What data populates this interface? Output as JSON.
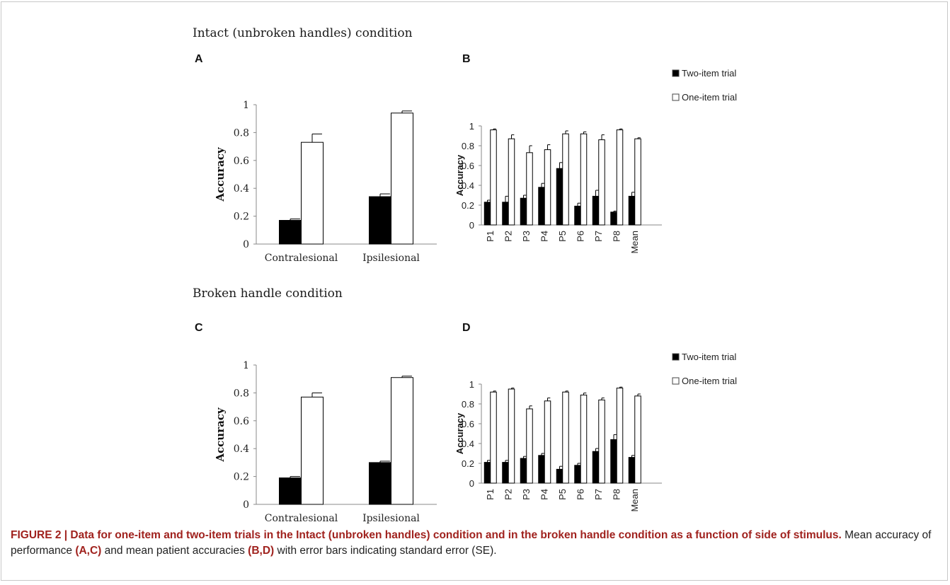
{
  "sections": [
    {
      "title": "Intact (unbroken handles) condition"
    },
    {
      "title": "Broken handle condition"
    }
  ],
  "panel_letters": {
    "A": "A",
    "B": "B",
    "C": "C",
    "D": "D"
  },
  "caption": {
    "lead": "FIGURE 2 | Data for one-item and two-item trials in the Intact (unbroken handles) condition and in the broken handle condition as a function of side of stimulus.",
    "t1": " Mean accuracy of performance ",
    "ref1": "(A,C)",
    "t2": " and mean patient accuracies ",
    "ref2": "(B,D)",
    "t3": " with error bars indicating standard error (SE)."
  },
  "colors": {
    "two_item": "#000000",
    "one_item": "#ffffff",
    "axis": "#888888"
  },
  "chart_data": [
    {
      "panel": "A",
      "type": "bar",
      "categories": [
        "Contralesional",
        "Ipsilesional"
      ],
      "ylabel": "Accuracy",
      "ylim": [
        0,
        1
      ],
      "yticks": [
        "0",
        "0.2",
        "0.4",
        "0.6",
        "0.8",
        "1"
      ],
      "series": [
        {
          "values": [
            0.17,
            0.34
          ],
          "errors": [
            0.01,
            0.02
          ],
          "fill": "#000000"
        },
        {
          "values": [
            0.73,
            0.94
          ],
          "errors": [
            0.06,
            0.015
          ],
          "fill": "#ffffff"
        }
      ]
    },
    {
      "panel": "B",
      "type": "bar",
      "categories": [
        "P1",
        "P2",
        "P3",
        "P4",
        "P5",
        "P6",
        "P7",
        "P8",
        "Mean"
      ],
      "ylabel": "Accuracy",
      "ylim": [
        0,
        1
      ],
      "yticks": [
        "0",
        "0.2",
        "0.4",
        "0.6",
        "0.8",
        "1"
      ],
      "legend": {
        "position": "right",
        "items": [
          "Two-item trial",
          "One-item trial"
        ]
      },
      "series": [
        {
          "name": "Two-item trial",
          "values": [
            0.23,
            0.23,
            0.27,
            0.38,
            0.57,
            0.19,
            0.29,
            0.13,
            0.29
          ],
          "errors": [
            0.02,
            0.06,
            0.03,
            0.04,
            0.06,
            0.03,
            0.06,
            0.01,
            0.04
          ],
          "fill": "#000000"
        },
        {
          "name": "One-item trial",
          "values": [
            0.96,
            0.87,
            0.73,
            0.76,
            0.92,
            0.92,
            0.86,
            0.96,
            0.87
          ],
          "errors": [
            0.01,
            0.04,
            0.07,
            0.05,
            0.03,
            0.02,
            0.05,
            0.01,
            0.01
          ],
          "fill": "#ffffff"
        }
      ]
    },
    {
      "panel": "C",
      "type": "bar",
      "categories": [
        "Contralesional",
        "Ipsilesional"
      ],
      "ylabel": "Accuracy",
      "ylim": [
        0,
        1
      ],
      "yticks": [
        "0",
        "0.2",
        "0.4",
        "0.6",
        "0.8",
        "1"
      ],
      "series": [
        {
          "values": [
            0.19,
            0.3
          ],
          "errors": [
            0.01,
            0.01
          ],
          "fill": "#000000"
        },
        {
          "values": [
            0.77,
            0.91
          ],
          "errors": [
            0.03,
            0.01
          ],
          "fill": "#ffffff"
        }
      ]
    },
    {
      "panel": "D",
      "type": "bar",
      "categories": [
        "P1",
        "P2",
        "P3",
        "P4",
        "P5",
        "P6",
        "P7",
        "P8",
        "Mean"
      ],
      "ylabel": "Accuracy",
      "ylim": [
        0,
        1
      ],
      "yticks": [
        "0",
        "0.2",
        "0.4",
        "0.6",
        "0.8",
        "1"
      ],
      "legend": {
        "position": "right",
        "items": [
          "Two-item trial",
          "One-item trial"
        ]
      },
      "series": [
        {
          "name": "Two-item trial",
          "values": [
            0.21,
            0.21,
            0.25,
            0.28,
            0.14,
            0.18,
            0.32,
            0.44,
            0.26
          ],
          "errors": [
            0.02,
            0.02,
            0.02,
            0.02,
            0.03,
            0.02,
            0.03,
            0.05,
            0.02
          ],
          "fill": "#000000"
        },
        {
          "name": "One-item trial",
          "values": [
            0.92,
            0.95,
            0.75,
            0.83,
            0.92,
            0.89,
            0.84,
            0.96,
            0.88
          ],
          "errors": [
            0.01,
            0.01,
            0.03,
            0.03,
            0.01,
            0.02,
            0.02,
            0.01,
            0.02
          ],
          "fill": "#ffffff"
        }
      ]
    }
  ]
}
